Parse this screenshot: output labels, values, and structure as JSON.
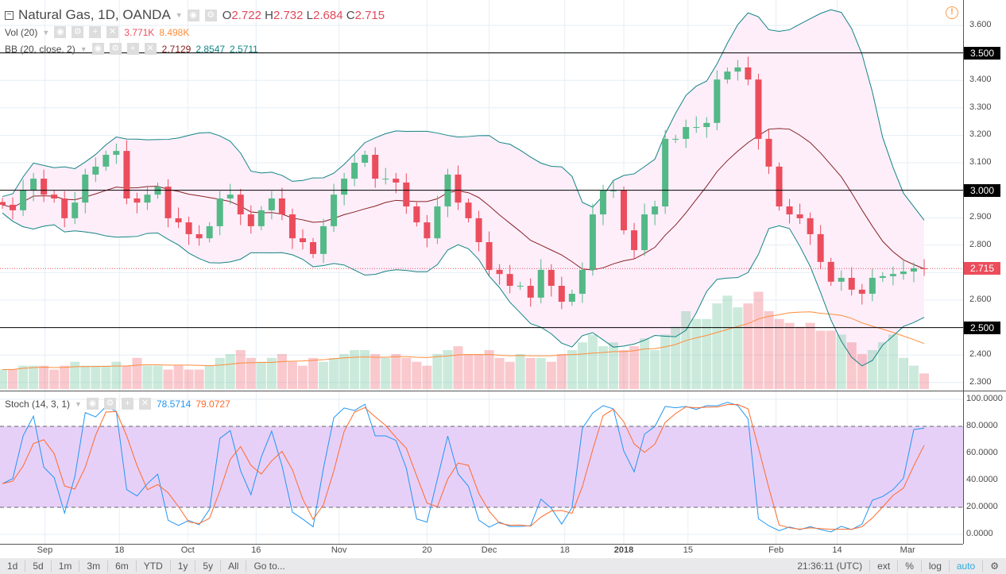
{
  "header": {
    "symbol": "Natural Gas, 1D, OANDA",
    "o_label": "O",
    "o": "2.722",
    "h_label": "H",
    "h": "2.732",
    "l_label": "L",
    "l": "2.684",
    "c_label": "C",
    "c": "2.715"
  },
  "indicators": {
    "vol": {
      "label": "Vol (20)",
      "v1": "3.771K",
      "v2": "8.498K"
    },
    "bb": {
      "label": "BB (20, close, 2)",
      "basis": "2.7129",
      "upper": "2.8547",
      "lower": "2.5711"
    },
    "stoch": {
      "label": "Stoch (14, 3, 1)",
      "k": "78.5714",
      "d": "79.0727"
    }
  },
  "colors": {
    "up": "#53b987",
    "down": "#eb4d5c",
    "bb_basis": "#872323",
    "bb_band": "#138484",
    "vol_ma": "#ff8c3a",
    "k": "#2196f3",
    "d": "#ff6a2a",
    "stoch_fill": "#e7d0f8"
  },
  "chart_data": {
    "type": "candlestick",
    "price_axis": {
      "min": 2.25,
      "max": 3.66,
      "ticks": [
        "3.600",
        "3.400",
        "3.300",
        "3.200",
        "3.100",
        "2.900",
        "2.800",
        "2.600",
        "2.400",
        "2.300"
      ]
    },
    "horizontal_lines": [
      {
        "price": 3.5,
        "label": "3.500"
      },
      {
        "price": 3.0,
        "label": "3.000"
      },
      {
        "price": 2.5,
        "label": "2.500"
      }
    ],
    "last_price": {
      "price": 2.715,
      "label": "2.715"
    },
    "closes": [
      2.947,
      2.927,
      2.999,
      3.042,
      2.984,
      2.97,
      2.898,
      2.955,
      3.057,
      3.086,
      3.129,
      3.143,
      2.97,
      2.955,
      2.984,
      3.013,
      2.898,
      2.883,
      2.84,
      2.825,
      2.869,
      2.97,
      2.984,
      2.912,
      2.869,
      2.927,
      2.97,
      2.912,
      2.825,
      2.811,
      2.768,
      2.869,
      2.984,
      3.042,
      3.1,
      3.129,
      3.042,
      3.042,
      3.028,
      2.941,
      2.883,
      2.825,
      2.941,
      3.057,
      2.955,
      2.898,
      2.811,
      2.71,
      2.695,
      2.652,
      2.652,
      2.609,
      2.71,
      2.652,
      2.594,
      2.623,
      2.71,
      2.912,
      2.999,
      2.999,
      2.854,
      2.782,
      2.912,
      2.941,
      3.187,
      3.187,
      3.23,
      3.23,
      3.245,
      3.403,
      3.432,
      3.447,
      3.403,
      3.187,
      3.086,
      2.941,
      2.912,
      2.898,
      2.84,
      2.739,
      2.667,
      2.681,
      2.638,
      2.623,
      2.681,
      2.687,
      2.695,
      2.704,
      2.716,
      2.715
    ],
    "volumes_k": [
      5,
      5,
      6,
      6,
      6,
      5,
      6,
      7,
      6,
      6,
      6,
      7,
      6,
      8,
      6,
      6,
      5,
      6,
      5,
      5,
      6,
      8,
      9,
      10,
      8,
      7,
      8,
      9,
      7,
      6,
      8,
      7,
      8,
      9,
      10,
      10,
      9,
      8,
      9,
      8,
      7,
      6,
      9,
      10,
      11,
      9,
      9,
      10,
      8,
      7,
      9,
      8,
      8,
      7,
      9,
      10,
      12,
      14,
      11,
      12,
      10,
      11,
      13,
      10,
      14,
      16,
      20,
      18,
      18,
      22,
      24,
      21,
      22,
      25,
      20,
      18,
      17,
      16,
      17,
      15,
      15,
      14,
      12,
      9,
      10,
      12,
      14,
      8,
      6,
      4
    ],
    "x_ticks": [
      {
        "label": "Sep",
        "bar": 4.1
      },
      {
        "label": "18",
        "bar": 11.3
      },
      {
        "label": "Oct",
        "bar": 17.9
      },
      {
        "label": "16",
        "bar": 24.5
      },
      {
        "label": "Nov",
        "bar": 32.5
      },
      {
        "label": "20",
        "bar": 41
      },
      {
        "label": "Dec",
        "bar": 47
      },
      {
        "label": "18",
        "bar": 54.3
      },
      {
        "label": "2018",
        "bar": 60
      },
      {
        "label": "15",
        "bar": 66.2
      },
      {
        "label": "Feb",
        "bar": 74.7
      },
      {
        "label": "14",
        "bar": 80.6
      },
      {
        "label": "Mar",
        "bar": 87.4
      }
    ],
    "stoch_axis": {
      "min": -5,
      "max": 103,
      "ticks": [
        "100.0000",
        "80.0000",
        "60.0000",
        "40.0000",
        "20.0000",
        "0.0000"
      ],
      "upper_band": 80,
      "lower_band": 20
    }
  },
  "toolbar": {
    "ranges": [
      "1d",
      "5d",
      "1m",
      "3m",
      "6m",
      "YTD",
      "1y",
      "5y",
      "All",
      "Go to..."
    ],
    "time": "21:36:11 (UTC)",
    "ext": "ext",
    "pct": "%",
    "log": "log",
    "auto": "auto"
  }
}
